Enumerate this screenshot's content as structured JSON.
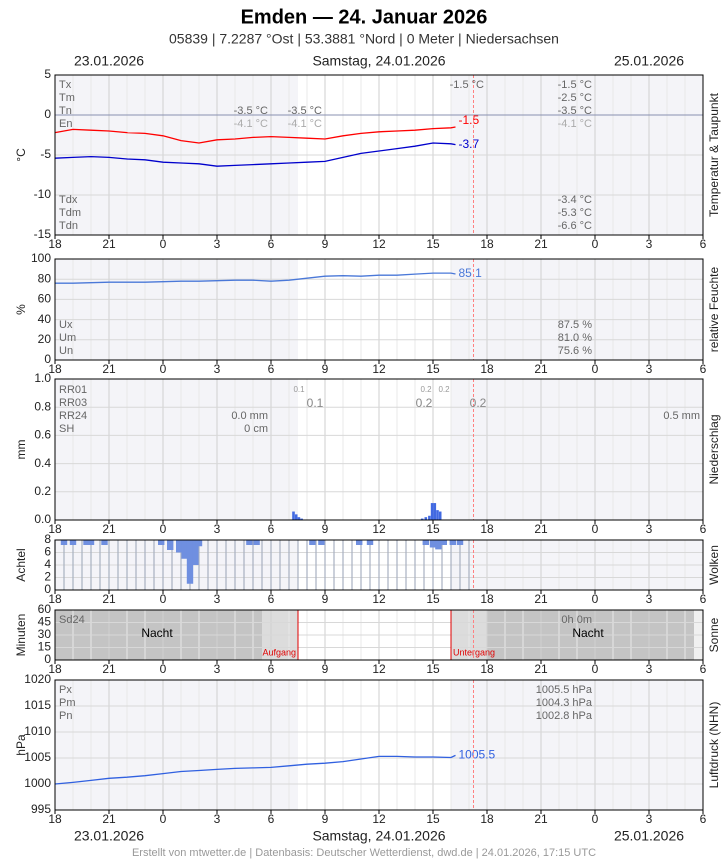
{
  "header": {
    "title": "Emden  —  24. Januar 2026",
    "subtitle": "05839  |  7.2287 °Ost  |  53.3881 °Nord  |  0 Meter  |  Niedersachsen"
  },
  "dates": [
    "23.01.2026",
    "Samstag, 24.01.2026",
    "25.01.2026"
  ],
  "footer": "Erstellt von mtwetter.de | Datenbasis: Deutscher Wetterdienst, dwd.de | 24.01.2026, 17:15 UTC",
  "time_marker": 23.25,
  "chart_data": [
    {
      "type": "line",
      "ylabel": "°C",
      "side_label": "Temperatur & Taupunkt",
      "grid": true,
      "xlim": [
        0,
        36
      ],
      "xticks": [
        {
          "value": 0,
          "label": "18"
        },
        {
          "value": 3,
          "label": "21"
        },
        {
          "value": 6,
          "label": "0"
        },
        {
          "value": 9,
          "label": "3"
        },
        {
          "value": 12,
          "label": "6"
        },
        {
          "value": 15,
          "label": "9"
        },
        {
          "value": 18,
          "label": "12"
        },
        {
          "value": 21,
          "label": "15"
        },
        {
          "value": 24,
          "label": "18"
        },
        {
          "value": 27,
          "label": "21"
        },
        {
          "value": 30,
          "label": "0"
        },
        {
          "value": 33,
          "label": "3"
        },
        {
          "value": 36,
          "label": "6"
        }
      ],
      "ylim": [
        -15,
        5
      ],
      "yticks": [
        -15,
        -10,
        -5,
        0,
        5
      ],
      "series": [
        {
          "color": "#ff0000",
          "x": [
            0,
            1,
            2,
            3,
            4,
            5,
            6,
            7,
            8,
            9,
            10,
            11,
            12,
            13,
            14,
            15,
            16,
            17,
            18,
            19,
            20,
            21,
            22,
            22.25
          ],
          "values": [
            -2.2,
            -1.8,
            -1.9,
            -2.0,
            -2.2,
            -2.3,
            -2.6,
            -3.2,
            -3.5,
            -3.1,
            -3.0,
            -2.8,
            -2.7,
            -2.8,
            -2.9,
            -3.0,
            -2.6,
            -2.3,
            -2.1,
            -2.0,
            -1.9,
            -1.7,
            -1.6,
            -1.5
          ]
        },
        {
          "color": "#0000cc",
          "x": [
            0,
            1,
            2,
            3,
            4,
            5,
            6,
            7,
            8,
            9,
            10,
            11,
            12,
            13,
            14,
            15,
            16,
            17,
            18,
            19,
            20,
            21,
            22,
            22.25
          ],
          "values": [
            -5.4,
            -5.3,
            -5.2,
            -5.3,
            -5.5,
            -5.6,
            -5.9,
            -6.0,
            -6.1,
            -6.4,
            -6.3,
            -6.2,
            -6.1,
            -6.0,
            -5.9,
            -5.8,
            -5.3,
            -4.8,
            -4.5,
            -4.2,
            -3.9,
            -3.5,
            -3.6,
            -3.7
          ]
        }
      ],
      "annotations": [
        "Tx",
        "Tm",
        "Tn",
        "En",
        "-1.5 °C",
        "-1.5 °C",
        "-2.5 °C",
        "-3.5 °C",
        "-4.1 °C",
        "-3.5 °C",
        "-4.1 °C",
        "-3.5 °C",
        "-4.1 °C",
        "Tdx",
        "Tdm",
        "Tdn",
        "-3.4 °C",
        "-5.3 °C",
        "-6.6 °C"
      ]
    },
    {
      "type": "line",
      "ylabel": "%",
      "side_label": "relative Feuchte",
      "grid": true,
      "xlim": [
        0,
        36
      ],
      "xticks": [
        {
          "value": 0,
          "label": "18"
        },
        {
          "value": 3,
          "label": "21"
        },
        {
          "value": 6,
          "label": "0"
        },
        {
          "value": 9,
          "label": "3"
        },
        {
          "value": 12,
          "label": "6"
        },
        {
          "value": 15,
          "label": "9"
        },
        {
          "value": 18,
          "label": "12"
        },
        {
          "value": 21,
          "label": "15"
        },
        {
          "value": 24,
          "label": "18"
        },
        {
          "value": 27,
          "label": "21"
        },
        {
          "value": 30,
          "label": "0"
        },
        {
          "value": 33,
          "label": "3"
        },
        {
          "value": 36,
          "label": "6"
        }
      ],
      "ylim": [
        0,
        100
      ],
      "yticks": [
        0,
        20,
        40,
        60,
        80,
        100
      ],
      "series": [
        {
          "color": "#4a78d8",
          "x": [
            0,
            1,
            2,
            3,
            4,
            5,
            6,
            7,
            8,
            9,
            10,
            11,
            12,
            13,
            14,
            15,
            16,
            17,
            18,
            19,
            20,
            21,
            22,
            22.25
          ],
          "values": [
            76,
            76,
            76.5,
            77,
            77,
            77,
            77.5,
            78,
            78,
            78.5,
            79,
            79,
            78,
            79,
            81,
            83,
            83.5,
            83,
            84,
            84,
            85,
            86,
            86,
            85.1
          ]
        }
      ],
      "annotations": [
        "Ux",
        "Um",
        "Un",
        "87.5 %",
        "81.0 %",
        "75.6 %"
      ]
    },
    {
      "type": "bar",
      "ylabel": "mm",
      "side_label": "Niederschlag",
      "grid": true,
      "xlim": [
        0,
        36
      ],
      "xticks": [
        {
          "value": 0,
          "label": "18"
        },
        {
          "value": 3,
          "label": "21"
        },
        {
          "value": 6,
          "label": "0"
        },
        {
          "value": 9,
          "label": "3"
        },
        {
          "value": 12,
          "label": "6"
        },
        {
          "value": 15,
          "label": "9"
        },
        {
          "value": 18,
          "label": "12"
        },
        {
          "value": 21,
          "label": "15"
        },
        {
          "value": 24,
          "label": "18"
        },
        {
          "value": 27,
          "label": "21"
        },
        {
          "value": 30,
          "label": "0"
        },
        {
          "value": 33,
          "label": "3"
        },
        {
          "value": 36,
          "label": "6"
        }
      ],
      "ylim": [
        0,
        1
      ],
      "yticks": [
        {
          "value": 0,
          "label": "0.0"
        },
        {
          "value": 0.2,
          "label": "0.2"
        },
        {
          "value": 0.4,
          "label": "0.4"
        },
        {
          "value": 0.6,
          "label": "0.6"
        },
        {
          "value": 0.8,
          "label": "0.8"
        },
        {
          "value": 1,
          "label": "1.0"
        }
      ],
      "series": [
        {
          "color": "#4169e1",
          "x": [
            13.25,
            13.4,
            13.55,
            13.7,
            20.4,
            20.6,
            20.8,
            20.95,
            21.1,
            21.25,
            21.4
          ],
          "values": [
            0.06,
            0.04,
            0.02,
            0.01,
            0.01,
            0.02,
            0.03,
            0.12,
            0.12,
            0.07,
            0.06
          ]
        }
      ],
      "annotations": [
        "RR01",
        "RR03",
        "RR24",
        "SH",
        "0.0 mm",
        "0 cm",
        "0.5 mm",
        "0.1",
        "0.2",
        "0.2",
        "0.1",
        "0.2",
        "0.2"
      ]
    },
    {
      "type": "cloud",
      "ylabel": "Achtel",
      "side_label": "Wolken",
      "grid": true,
      "xlim": [
        0,
        36
      ],
      "xticks": [
        {
          "value": 0,
          "label": "18"
        },
        {
          "value": 3,
          "label": "21"
        },
        {
          "value": 6,
          "label": "0"
        },
        {
          "value": 9,
          "label": "3"
        },
        {
          "value": 12,
          "label": "6"
        },
        {
          "value": 15,
          "label": "9"
        },
        {
          "value": 18,
          "label": "12"
        },
        {
          "value": 21,
          "label": "15"
        },
        {
          "value": 24,
          "label": "18"
        },
        {
          "value": 27,
          "label": "21"
        },
        {
          "value": 30,
          "label": "0"
        },
        {
          "value": 33,
          "label": "3"
        },
        {
          "value": 36,
          "label": "6"
        }
      ],
      "ylim": [
        0,
        8
      ],
      "yticks": [
        0,
        2,
        4,
        6,
        8
      ],
      "series": [
        {
          "color": "#a8b0c0",
          "x": [
            0,
            0.5,
            1,
            1.5,
            2,
            2.5,
            3,
            3.5,
            4,
            4.5,
            5,
            5.5,
            6,
            6.5,
            7,
            7.5,
            8,
            8.5,
            9,
            9.5,
            10,
            10.5,
            11,
            11.5,
            12,
            12.5,
            13,
            13.5,
            14,
            14.5,
            15,
            15.5,
            16,
            16.5,
            17,
            17.5,
            18,
            18.5,
            19,
            19.5,
            20,
            20.5,
            21,
            21.5,
            22,
            22.5,
            23
          ],
          "values": [
            8,
            8,
            8,
            8,
            8,
            8,
            8,
            8,
            8,
            8,
            8,
            8,
            8,
            8,
            8,
            8,
            8,
            8,
            8,
            8,
            8,
            8,
            8,
            8,
            8,
            8,
            8,
            8,
            8,
            8,
            8,
            8,
            8,
            8,
            8,
            8,
            8,
            8,
            8,
            8,
            8,
            8,
            8,
            8,
            8,
            8,
            8
          ]
        },
        {
          "color": "#6f8fe0",
          "hanging": true,
          "x": [
            0.5,
            1.0,
            1.75,
            2.0,
            2.75,
            5.9,
            6.4,
            6.9,
            7.2,
            7.5,
            7.8,
            8.0,
            10.8,
            11.2,
            14.3,
            14.8,
            16.9,
            17.5,
            20.6,
            21.0,
            21.3,
            21.6,
            22.1,
            22.5
          ],
          "values": [
            7.2,
            7.2,
            7.2,
            7.2,
            7.2,
            7.2,
            6.4,
            6.0,
            5.0,
            1.0,
            4.0,
            7.0,
            7.2,
            7.2,
            7.2,
            7.2,
            7.2,
            7.2,
            7.2,
            6.8,
            6.5,
            7.2,
            7.2,
            7.2
          ]
        }
      ],
      "annotations": []
    },
    {
      "type": "sun",
      "ylabel": "Minuten",
      "side_label": "Sonne",
      "grid": true,
      "xlim": [
        0,
        36
      ],
      "xticks": [
        {
          "value": 0,
          "label": "18"
        },
        {
          "value": 3,
          "label": "21"
        },
        {
          "value": 6,
          "label": "0"
        },
        {
          "value": 9,
          "label": "3"
        },
        {
          "value": 12,
          "label": "6"
        },
        {
          "value": 15,
          "label": "9"
        },
        {
          "value": 18,
          "label": "12"
        },
        {
          "value": 21,
          "label": "15"
        },
        {
          "value": 24,
          "label": "18"
        },
        {
          "value": 27,
          "label": "21"
        },
        {
          "value": 30,
          "label": "0"
        },
        {
          "value": 33,
          "label": "3"
        },
        {
          "value": 36,
          "label": "6"
        }
      ],
      "ylim": [
        0,
        60
      ],
      "yticks": [
        0,
        15,
        30,
        45,
        60
      ],
      "events": [
        {
          "x": 13.5,
          "label": "Aufgang"
        },
        {
          "x": 22.0,
          "label": "Untergang"
        }
      ],
      "series": [],
      "annotations": [
        "Sd24",
        "0h 0m",
        "Nacht",
        "Nacht"
      ]
    },
    {
      "type": "line",
      "ylabel": "hPa",
      "side_label": "Luftdruck (NHN)",
      "grid": true,
      "xlim": [
        0,
        36
      ],
      "xticks": [
        {
          "value": 0,
          "label": "18"
        },
        {
          "value": 3,
          "label": "21"
        },
        {
          "value": 6,
          "label": "0"
        },
        {
          "value": 9,
          "label": "3"
        },
        {
          "value": 12,
          "label": "6"
        },
        {
          "value": 15,
          "label": "9"
        },
        {
          "value": 18,
          "label": "12"
        },
        {
          "value": 21,
          "label": "15"
        },
        {
          "value": 24,
          "label": "18"
        },
        {
          "value": 27,
          "label": "21"
        },
        {
          "value": 30,
          "label": "0"
        },
        {
          "value": 33,
          "label": "3"
        },
        {
          "value": 36,
          "label": "6"
        }
      ],
      "ylim": [
        995,
        1020
      ],
      "yticks": [
        995,
        1000,
        1005,
        1010,
        1015,
        1020
      ],
      "series": [
        {
          "color": "#3060e0",
          "x": [
            0,
            1,
            2,
            3,
            4,
            5,
            6,
            7,
            8,
            9,
            10,
            11,
            12,
            13,
            14,
            15,
            16,
            17,
            18,
            19,
            20,
            21,
            22,
            22.25
          ],
          "values": [
            1000.0,
            1000.3,
            1000.7,
            1001.1,
            1001.3,
            1001.6,
            1002.0,
            1002.4,
            1002.6,
            1002.8,
            1003.0,
            1003.1,
            1003.2,
            1003.5,
            1003.8,
            1004.0,
            1004.3,
            1004.8,
            1005.3,
            1005.3,
            1005.2,
            1005.2,
            1005.1,
            1005.5
          ]
        }
      ],
      "annotations": [
        "Px",
        "Pm",
        "Pn",
        "1005.5 hPa",
        "1004.3 hPa",
        "1002.8 hPa"
      ]
    }
  ]
}
